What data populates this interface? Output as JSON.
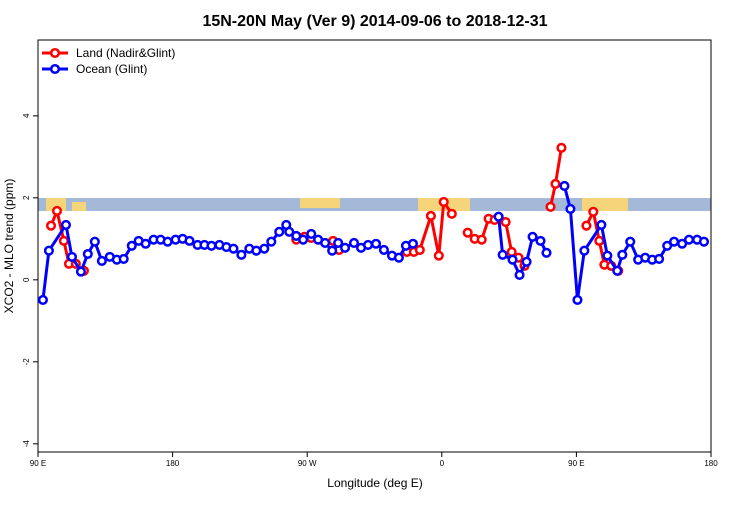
{
  "chart_data": {
    "type": "line",
    "title": "15N-20N May (Ver 9)   2014-09-06 to 2018-12-31",
    "x_label": "Longitude (deg E)",
    "y_label": "XCO2 - MLO trend (ppm)",
    "xlim": [
      90,
      540
    ],
    "xticks": [
      {
        "value": 90,
        "label": "90 E"
      },
      180,
      {
        "value": 270,
        "label": "90 W"
      },
      {
        "value": 360,
        "label": "0"
      },
      {
        "value": 450,
        "label": "90 E"
      },
      {
        "value": 540,
        "label": "180"
      }
    ],
    "ylim": [
      -4.2,
      5.85
    ],
    "yticks": [
      -4,
      -2,
      0,
      2,
      4
    ],
    "legend": "top-left",
    "series": [
      {
        "name": "Land (Nadir&Glint)",
        "color": "#ff0000",
        "x": [
          98.7,
          102.7,
          107.3,
          110.7,
          115.3,
          120.7,
          null,
          262.7,
          268,
          272.7,
          null,
          287.3,
          291.3,
          null,
          336.7,
          341.3,
          345.3,
          352.7,
          358,
          361.3,
          366.7,
          null,
          377.3,
          382,
          386.7,
          391.3,
          395.3,
          402.7,
          406.7,
          411.3,
          415.3,
          null,
          432.7,
          436,
          440,
          null,
          456.7,
          461.3,
          465.3,
          468.7,
          473.3,
          478
        ],
        "values": [
          1.32,
          1.68,
          0.95,
          0.39,
          0.39,
          0.22,
          null,
          0.98,
          1.05,
          1.02,
          null,
          0.95,
          0.73,
          null,
          0.68,
          0.68,
          0.73,
          1.56,
          0.59,
          1.9,
          1.61,
          null,
          1.15,
          1.0,
          0.98,
          1.49,
          1.46,
          1.41,
          0.68,
          0.54,
          0.34,
          null,
          1.78,
          2.34,
          3.22,
          null,
          1.32,
          1.66,
          0.95,
          0.37,
          0.34,
          0.22
        ]
      },
      {
        "name": "Ocean (Glint)",
        "color": "#0000ff",
        "x": [
          93.3,
          97.3,
          108.7,
          112.7,
          118.7,
          123.3,
          128,
          132.7,
          138,
          142.7,
          147.3,
          152.7,
          157.3,
          162,
          167.3,
          172,
          176.7,
          182,
          186.7,
          191.3,
          196.7,
          201.3,
          206,
          211.3,
          216,
          220.7,
          226,
          231.3,
          236,
          241.3,
          246,
          251.3,
          256,
          258,
          262.7,
          267.3,
          272.7,
          277.3,
          282,
          286.7,
          290.7,
          295.3,
          301.3,
          306,
          310.7,
          316,
          321.3,
          326.7,
          331.3,
          336,
          340.7,
          null,
          398,
          400.7,
          407.3,
          412,
          416.7,
          420.7,
          426,
          430,
          null,
          442,
          446,
          450.7,
          455.3,
          466.7,
          470.7,
          477.3,
          480.7,
          486,
          491.3,
          496,
          500.7,
          505.3,
          510.7,
          515.3,
          520.7,
          525.3,
          530.7,
          535.3
        ],
        "values": [
          -0.49,
          0.71,
          1.34,
          0.56,
          0.2,
          0.63,
          0.93,
          0.46,
          0.56,
          0.49,
          0.51,
          0.83,
          0.95,
          0.88,
          0.98,
          0.98,
          0.93,
          0.98,
          1.0,
          0.95,
          0.85,
          0.85,
          0.83,
          0.85,
          0.8,
          0.76,
          0.61,
          0.76,
          0.71,
          0.76,
          0.93,
          1.17,
          1.34,
          1.17,
          1.07,
          0.98,
          1.12,
          0.98,
          0.9,
          0.71,
          0.9,
          0.78,
          0.9,
          0.78,
          0.85,
          0.88,
          0.73,
          0.59,
          0.54,
          0.83,
          0.88,
          null,
          1.54,
          0.61,
          0.49,
          0.12,
          0.44,
          1.05,
          0.95,
          0.66,
          null,
          2.29,
          1.73,
          -0.49,
          0.71,
          1.34,
          0.59,
          0.22,
          0.61,
          0.93,
          0.49,
          0.54,
          0.49,
          0.51,
          0.83,
          0.93,
          0.88,
          0.98,
          0.98,
          0.93
        ]
      }
    ]
  }
}
